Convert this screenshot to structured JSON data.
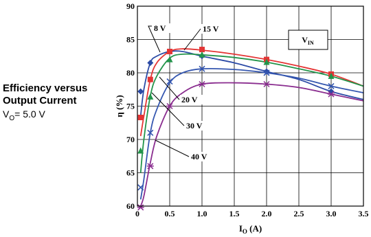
{
  "caption": {
    "line1": "Efficiency versus",
    "line2": "Output Current",
    "line3_prefix": "V",
    "line3_sub": "O",
    "line3_suffix": "= 5.0 V"
  },
  "chart_data": {
    "type": "line",
    "title": "",
    "xlabel_main": "I",
    "xlabel_sub": "O",
    "xlabel_unit": " (A)",
    "ylabel": "η (%)",
    "xlim": [
      0,
      3.5
    ],
    "ylim": [
      60,
      90
    ],
    "xticks": [
      "0",
      "0.5",
      "1.0",
      "1.5",
      "2.0",
      "2.5",
      "3.0",
      "3.5"
    ],
    "yticks": [
      "60",
      "65",
      "70",
      "75",
      "80",
      "85",
      "90"
    ],
    "grid": true,
    "legend_box": {
      "main": "V",
      "sub": "IN"
    },
    "series": [
      {
        "name": "8 V",
        "color": "#2b4aa6",
        "marker": "diamond",
        "x": [
          0.05,
          0.1,
          0.2,
          0.3,
          0.5,
          0.7,
          1.0,
          1.5,
          2.0,
          2.5,
          3.0,
          3.5
        ],
        "y": [
          73.5,
          77.5,
          81.5,
          82.5,
          83.2,
          83.2,
          82.5,
          81.5,
          80.2,
          79.0,
          77.2,
          76.0
        ],
        "mx": [
          0.05,
          0.2,
          0.5,
          1.0,
          2.0,
          3.0
        ],
        "my": [
          77.2,
          81.5,
          83.2,
          82.5,
          80.2,
          77.2
        ]
      },
      {
        "name": "15 V",
        "color": "#e43535",
        "marker": "square",
        "x": [
          0.05,
          0.1,
          0.2,
          0.3,
          0.5,
          0.7,
          1.0,
          1.5,
          2.0,
          2.5,
          3.0,
          3.5
        ],
        "y": [
          70.5,
          73.5,
          79.0,
          81.5,
          83.2,
          83.6,
          83.4,
          82.8,
          82.0,
          81.0,
          79.8,
          78.0
        ],
        "mx": [
          0.05,
          0.2,
          0.5,
          1.0,
          2.0,
          3.0
        ],
        "my": [
          73.3,
          79.0,
          83.2,
          83.5,
          82.0,
          79.8
        ]
      },
      {
        "name": "20 V",
        "color": "#22944a",
        "marker": "triangle",
        "x": [
          0.05,
          0.1,
          0.2,
          0.3,
          0.5,
          0.7,
          1.0,
          1.5,
          2.0,
          2.5,
          3.0,
          3.5
        ],
        "y": [
          65.0,
          70.0,
          76.5,
          79.5,
          82.2,
          82.8,
          82.7,
          82.3,
          81.6,
          80.6,
          79.5,
          78.0
        ],
        "mx": [
          0.05,
          0.2,
          0.5,
          1.0,
          2.0,
          3.0
        ],
        "my": [
          68.3,
          76.4,
          82.0,
          82.7,
          81.6,
          79.5
        ]
      },
      {
        "name": "30 V",
        "color": "#3557b0",
        "marker": "x",
        "x": [
          0.05,
          0.1,
          0.2,
          0.3,
          0.5,
          0.7,
          1.0,
          1.5,
          2.0,
          2.5,
          3.0,
          3.5
        ],
        "y": [
          61.0,
          64.0,
          71.0,
          74.5,
          78.5,
          80.0,
          80.6,
          80.5,
          80.0,
          79.2,
          78.0,
          77.0
        ],
        "mx": [
          0.05,
          0.2,
          0.5,
          1.0,
          2.0,
          3.0
        ],
        "my": [
          62.8,
          71.0,
          78.7,
          80.6,
          80.0,
          78.0
        ]
      },
      {
        "name": "40 V",
        "color": "#8a2d8f",
        "marker": "asterisk",
        "x": [
          0.05,
          0.1,
          0.2,
          0.3,
          0.5,
          0.7,
          1.0,
          1.5,
          2.0,
          2.5,
          3.0,
          3.5
        ],
        "y": [
          60.0,
          61.5,
          66.5,
          70.5,
          75.0,
          77.0,
          78.3,
          78.5,
          78.3,
          77.8,
          76.8,
          75.8
        ],
        "mx": [
          0.05,
          0.2,
          0.5,
          1.0,
          2.0,
          3.0
        ],
        "my": [
          59.8,
          66.0,
          75.0,
          78.3,
          78.3,
          76.8
        ]
      }
    ],
    "annotations": [
      {
        "text": "8 V",
        "series": "8 V"
      },
      {
        "text": "15 V",
        "series": "15 V"
      },
      {
        "text": "20 V",
        "series": "20 V"
      },
      {
        "text": "30 V",
        "series": "30 V"
      },
      {
        "text": "40 V",
        "series": "40 V"
      }
    ]
  }
}
